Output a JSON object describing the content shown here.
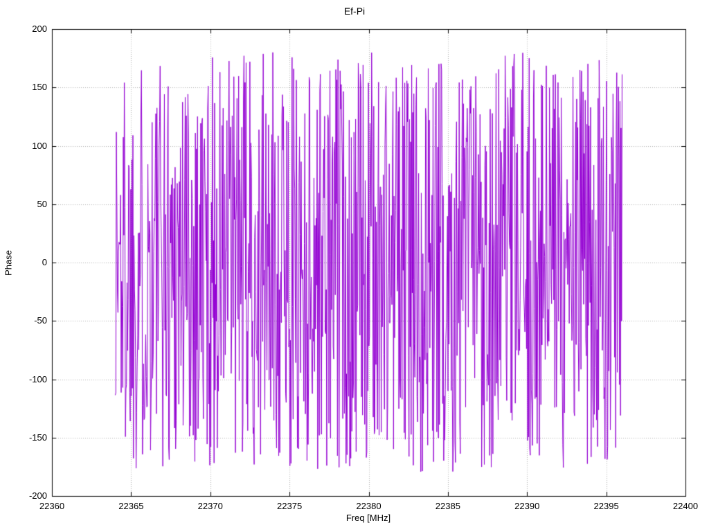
{
  "chart_data": {
    "type": "line",
    "title": "Ef-Pi",
    "xlabel": "Freq [MHz]",
    "ylabel": "Phase",
    "xlim": [
      22360,
      22400
    ],
    "ylim": [
      -200,
      200
    ],
    "x_ticks": [
      22360,
      22365,
      22370,
      22375,
      22380,
      22385,
      22390,
      22395,
      22400
    ],
    "y_ticks": [
      -200,
      -150,
      -100,
      -50,
      0,
      50,
      100,
      150,
      200
    ],
    "grid": true,
    "legend": "none",
    "series": [
      {
        "name": "Ef-Pi",
        "color": "#9400d3",
        "x_start": 22364.0,
        "x_end": 22396.0,
        "n_points": 950,
        "y_min": -180,
        "y_max": 180,
        "distribution": "uniform_random_wrapped_phase",
        "seed": 1337
      }
    ],
    "colors": {
      "line": "#9400d3",
      "grid": "#b0b0b0",
      "border": "#000000",
      "background": "#ffffff"
    }
  }
}
